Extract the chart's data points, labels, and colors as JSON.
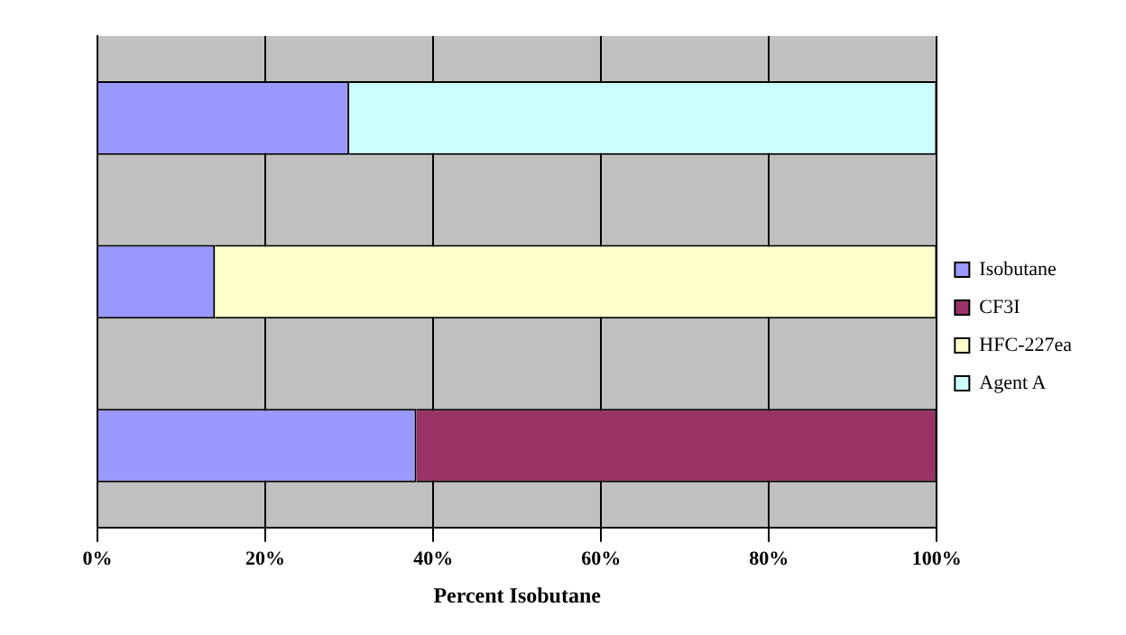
{
  "chart_data": {
    "type": "bar",
    "orientation": "horizontal",
    "stacked": true,
    "xlabel": "Percent Isobutane",
    "categories": [
      null,
      null,
      null
    ],
    "series": [
      {
        "name": "Isobutane",
        "color": "#9999ff",
        "values": [
          30,
          14,
          38
        ]
      },
      {
        "name": "CF3I",
        "color": "#993366",
        "values": [
          null,
          null,
          62
        ]
      },
      {
        "name": "HFC-227ea",
        "color": "#ffffcc",
        "values": [
          null,
          86,
          null
        ]
      },
      {
        "name": "Agent A",
        "color": "#ccffff",
        "values": [
          70,
          null,
          null
        ]
      }
    ],
    "xlim": [
      0,
      100
    ],
    "xticks": [
      {
        "value": 0,
        "label": "0%"
      },
      {
        "value": 20,
        "label": "20%"
      },
      {
        "value": 40,
        "label": "40%"
      },
      {
        "value": 60,
        "label": "60%"
      },
      {
        "value": 80,
        "label": "80%"
      },
      {
        "value": 100,
        "label": "100%"
      }
    ],
    "grid": "x",
    "legend": "right"
  }
}
